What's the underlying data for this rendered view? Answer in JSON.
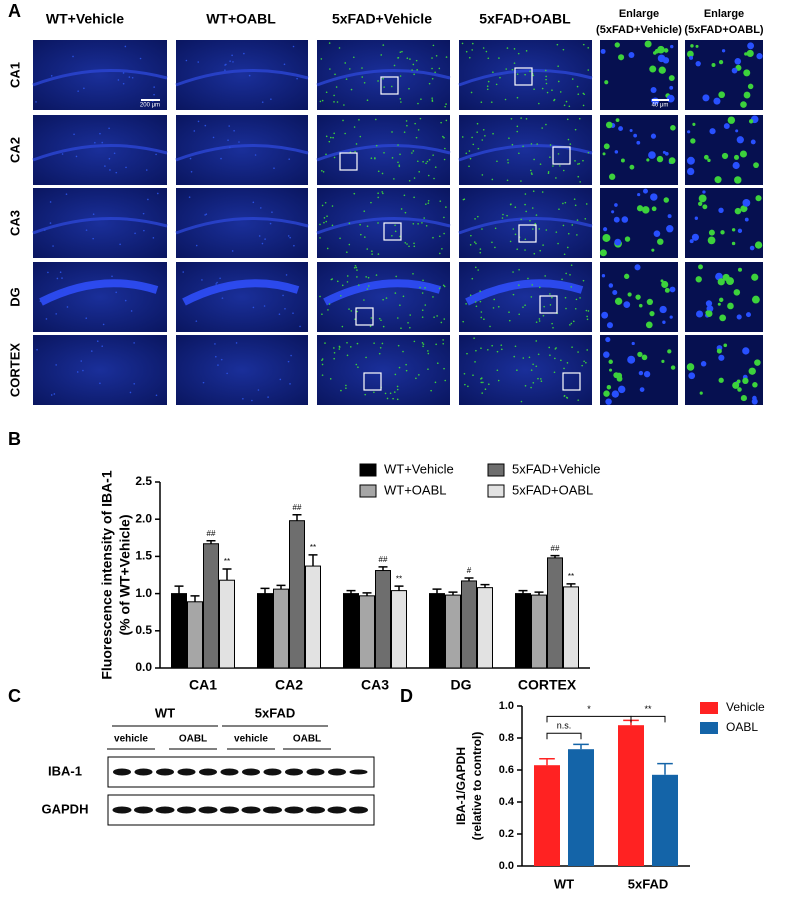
{
  "panel_labels": [
    "A",
    "B",
    "C",
    "D"
  ],
  "panel_a": {
    "columns": [
      [
        "WT+Vehicle"
      ],
      [
        "WT+OABL"
      ],
      [
        "5xFAD+Vehicle"
      ],
      [
        "5xFAD+OABL"
      ],
      [
        "Enlarge",
        "(5xFAD+Vehicle)"
      ],
      [
        "Enlarge",
        "(5xFAD+OABL)"
      ]
    ],
    "rows": [
      "CA1",
      "CA2",
      "CA3",
      "DG",
      "CORTEX"
    ],
    "scale_bars": [
      "200 μm",
      "40 μm"
    ]
  },
  "chart_data": [
    {
      "type": "bar",
      "y_label": [
        "Fluorescence intensity of IBA-1",
        "(% of WT+Vehicle)"
      ],
      "categories": [
        "CA1",
        "CA2",
        "CA3",
        "DG",
        "CORTEX"
      ],
      "series": [
        {
          "name": "WT+Vehicle",
          "color": "#000000",
          "values": [
            1.0,
            1.0,
            1.0,
            1.0,
            1.0
          ],
          "errors": [
            0.1,
            0.07,
            0.04,
            0.06,
            0.04
          ],
          "annotations": [
            null,
            null,
            null,
            null,
            null
          ]
        },
        {
          "name": "WT+OABL",
          "color": "#a6a6a6",
          "values": [
            0.89,
            1.06,
            0.97,
            0.98,
            0.98
          ],
          "errors": [
            0.08,
            0.05,
            0.04,
            0.04,
            0.04
          ],
          "annotations": [
            null,
            null,
            null,
            null,
            null
          ]
        },
        {
          "name": "5xFAD+Vehicle",
          "color": "#6e6e6e",
          "values": [
            1.67,
            1.98,
            1.31,
            1.17,
            1.48
          ],
          "errors": [
            0.04,
            0.08,
            0.05,
            0.04,
            0.03
          ],
          "annotations": [
            "##",
            "##",
            "##",
            "#",
            "##"
          ]
        },
        {
          "name": "5xFAD+OABL",
          "color": "#e2e2e2",
          "values": [
            1.18,
            1.37,
            1.04,
            1.08,
            1.09
          ],
          "errors": [
            0.15,
            0.15,
            0.06,
            0.04,
            0.04
          ],
          "annotations": [
            "**",
            "**",
            "**",
            null,
            "**"
          ]
        }
      ],
      "ylim": [
        0,
        2.5
      ],
      "yticks": [
        {
          "value": 0,
          "label": "0.0"
        },
        0.5,
        {
          "value": 1,
          "label": "1.0"
        },
        1.5,
        {
          "value": 2,
          "label": "2.0"
        },
        2.5
      ],
      "legend": "top-right"
    },
    {
      "type": "bar",
      "y_label": [
        "IBA-1/GAPDH",
        "(relative to control)"
      ],
      "categories": [
        "WT",
        "5xFAD"
      ],
      "series": [
        {
          "name": "Vehicle",
          "color": "#ff2222",
          "values": [
            0.63,
            0.88
          ],
          "errors": [
            0.04,
            0.03
          ]
        },
        {
          "name": "OABL",
          "color": "#1464a8",
          "values": [
            0.73,
            0.57
          ],
          "errors": [
            0.03,
            0.07
          ]
        }
      ],
      "comparisons": [
        "n.s.",
        "*",
        "**"
      ],
      "ylim": [
        0,
        1
      ],
      "yticks": [
        {
          "value": 0,
          "label": "0.0"
        },
        0.2,
        0.4,
        0.6,
        0.8,
        {
          "value": 1,
          "label": "1.0"
        }
      ],
      "legend": "right"
    }
  ],
  "panel_c": {
    "groups": [
      "WT",
      "5xFAD"
    ],
    "treatments": [
      "vehicle",
      "OABL",
      "vehicle",
      "OABL"
    ],
    "blots": [
      "IBA-1",
      "GAPDH"
    ]
  }
}
